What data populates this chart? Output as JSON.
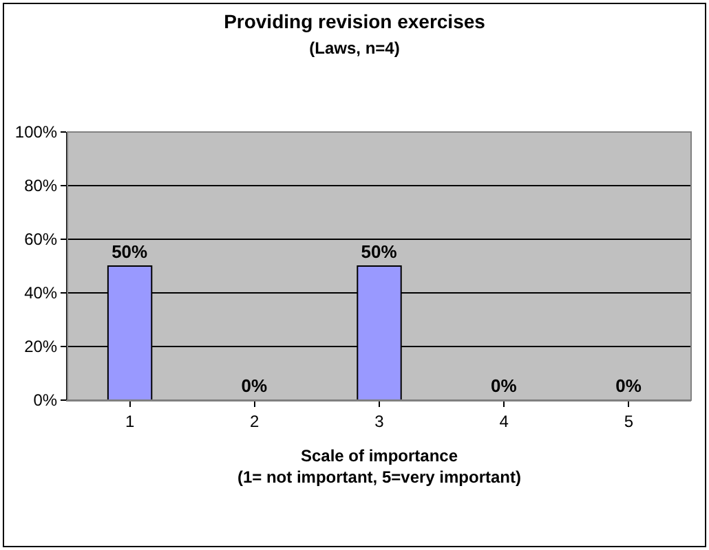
{
  "chart_data": {
    "type": "bar",
    "title": "Providing revision exercises",
    "subtitle": "(Laws, n=4)",
    "xlabel": "Scale of importance\n(1= not important, 5=very important)",
    "categories": [
      "1",
      "2",
      "3",
      "4",
      "5"
    ],
    "values": [
      50,
      0,
      50,
      0,
      0
    ],
    "color": "#9999ff",
    "value_labels": [
      "50%",
      "0%",
      "50%",
      "0%",
      "0%"
    ],
    "ylim": [
      0,
      100
    ],
    "yticks": [
      {
        "value": 0,
        "label": "0%"
      },
      {
        "value": 20,
        "label": "20%"
      },
      {
        "value": 40,
        "label": "40%"
      },
      {
        "value": 60,
        "label": "60%"
      },
      {
        "value": 80,
        "label": "80%"
      },
      {
        "value": 100,
        "label": "100%"
      }
    ],
    "grid": "y",
    "legend": false
  }
}
